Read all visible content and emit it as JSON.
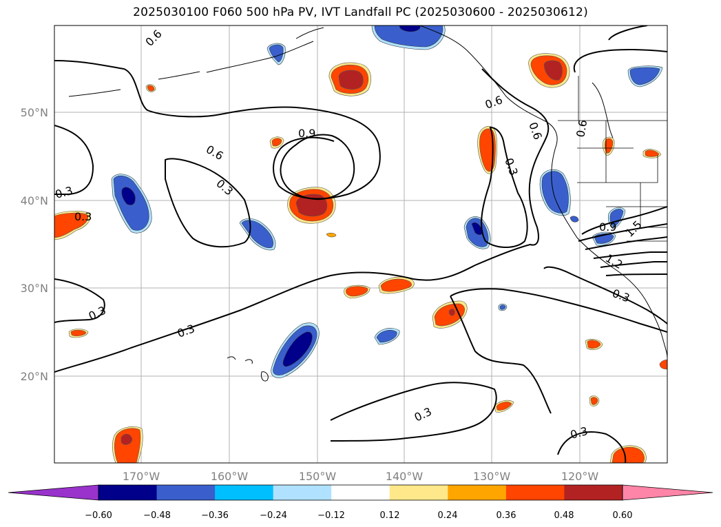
{
  "title": "2025030100 F060 500 hPa PV, IVT Landfall PC (2025030600 - 2025030612)",
  "map": {
    "lon_labels": [
      "170°W",
      "160°W",
      "150°W",
      "140°W",
      "130°W",
      "120°W"
    ],
    "lat_labels": [
      "50°N",
      "40°N",
      "30°N",
      "20°N"
    ],
    "contour_labels": [
      "0.6",
      "0.6",
      "0.9",
      "0.3",
      "0.3",
      "0.3",
      "0.3",
      "0.3",
      "0.6",
      "0.3",
      "0.6",
      "0.9",
      "1.2",
      "1.5",
      "0.3",
      "0.3",
      "0.3",
      "0.6"
    ]
  },
  "colorbar": {
    "tick_labels": [
      "−0.60",
      "−0.48",
      "−0.36",
      "−0.24",
      "−0.12",
      "0.12",
      "0.24",
      "0.36",
      "0.48",
      "0.60"
    ],
    "colors": [
      "#9933cc",
      "#00008b",
      "#3a5fcd",
      "#00bfff",
      "#b0e2ff",
      "#ffffff",
      "#ffe88a",
      "#ffa500",
      "#ff4500",
      "#b22222",
      "#ff85a8"
    ]
  }
}
